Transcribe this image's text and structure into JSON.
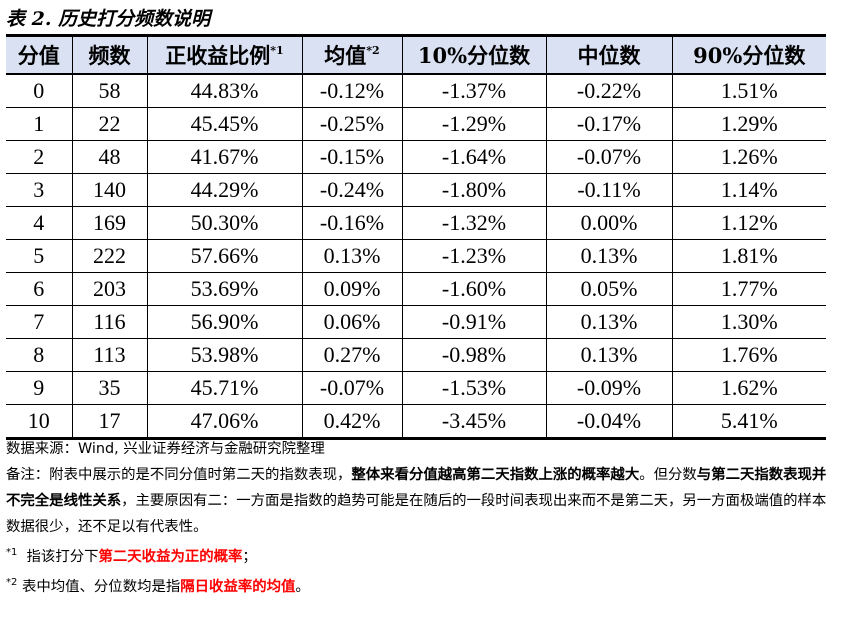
{
  "title": "表 2.   历史打分频数说明",
  "table": {
    "headers": [
      {
        "label": "分值",
        "sup": ""
      },
      {
        "label": "频数",
        "sup": ""
      },
      {
        "label": "正收益比例",
        "sup": "*1"
      },
      {
        "label": "均值",
        "sup": "*2"
      },
      {
        "label": "10%分位数",
        "sup": ""
      },
      {
        "label": "中位数",
        "sup": ""
      },
      {
        "label": "90%分位数",
        "sup": ""
      }
    ],
    "rows": [
      [
        "0",
        "58",
        "44.83%",
        "-0.12%",
        "-1.37%",
        "-0.22%",
        "1.51%"
      ],
      [
        "1",
        "22",
        "45.45%",
        "-0.25%",
        "-1.29%",
        "-0.17%",
        "1.29%"
      ],
      [
        "2",
        "48",
        "41.67%",
        "-0.15%",
        "-1.64%",
        "-0.07%",
        "1.26%"
      ],
      [
        "3",
        "140",
        "44.29%",
        "-0.24%",
        "-1.80%",
        "-0.11%",
        "1.14%"
      ],
      [
        "4",
        "169",
        "50.30%",
        "-0.16%",
        "-1.32%",
        "0.00%",
        "1.12%"
      ],
      [
        "5",
        "222",
        "57.66%",
        "0.13%",
        "-1.23%",
        "0.13%",
        "1.81%"
      ],
      [
        "6",
        "203",
        "53.69%",
        "0.09%",
        "-1.60%",
        "0.05%",
        "1.77%"
      ],
      [
        "7",
        "116",
        "56.90%",
        "0.06%",
        "-0.91%",
        "0.13%",
        "1.30%"
      ],
      [
        "8",
        "113",
        "53.98%",
        "0.27%",
        "-0.98%",
        "0.13%",
        "1.76%"
      ],
      [
        "9",
        "35",
        "45.71%",
        "-0.07%",
        "-1.53%",
        "-0.09%",
        "1.62%"
      ],
      [
        "10",
        "17",
        "47.06%",
        "0.42%",
        "-3.45%",
        "-0.04%",
        "5.41%"
      ]
    ]
  },
  "notes": {
    "source": "数据来源：Wind, 兴业证券经济与金融研究院整理",
    "remark_prefix": "备注：附表中展示的是不同分值时第二天的指数表现，",
    "remark_bold1": "整体来看分值越高第二天指数上涨的概率越大",
    "remark_mid": "。但分数",
    "remark_bold2": "与第二天指数表现并不完全是线性关系",
    "remark_rest": "，主要原因有二：一方面是指数的趋势可能是在随后的一段时间表现出来而不是第二天，另一方面极端值的样本数据很少，还不足以有代表性。",
    "fn1_mark": "*1",
    "fn1_text": "指该打分下",
    "fn1_red": "第二天收益为正的概率",
    "fn1_end": "；",
    "fn2_mark": "*2",
    "fn2_text": "表中均值、分位数均是指",
    "fn2_red": "隔日收益率的均值",
    "fn2_end": "。"
  },
  "colors": {
    "header_bg": "#d9e1f2",
    "highlight_red": "#ff0000"
  }
}
